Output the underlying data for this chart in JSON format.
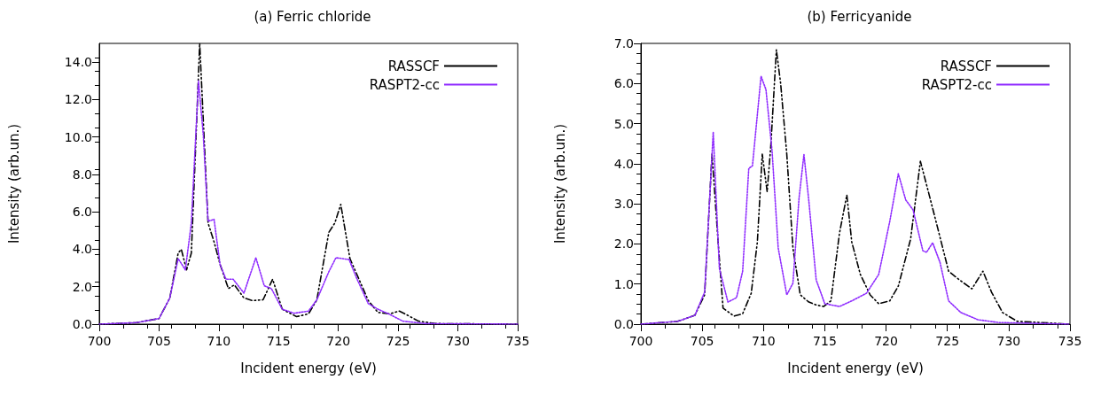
{
  "chart_data": [
    {
      "type": "line",
      "title": "(a) Ferric chloride",
      "xlabel": "Incident energy (eV)",
      "ylabel": "Intensity (arb.un.)",
      "xlim": [
        700,
        735
      ],
      "xticks": [
        700,
        705,
        710,
        715,
        720,
        725,
        730,
        735
      ],
      "ylim": [
        0,
        15
      ],
      "yticks": [
        {
          "value": 0,
          "label": "0.0"
        },
        {
          "value": 2,
          "label": "2.0"
        },
        {
          "value": 4,
          "label": "4.0"
        },
        {
          "value": 6,
          "label": "6.0"
        },
        {
          "value": 8,
          "label": "8.0"
        },
        {
          "value": 10,
          "label": "10.0"
        },
        {
          "value": 12,
          "label": "12.0"
        },
        {
          "value": 14,
          "label": "14.0"
        }
      ],
      "grid": false,
      "legend": "top right",
      "marker": "none",
      "series": [
        {
          "name": "RASSCF",
          "color": "#000000",
          "line_style": "dashed",
          "x": [
            700,
            703.1,
            705,
            705.9,
            706.6,
            706.86,
            707.3,
            707.7,
            708.1,
            708.4,
            708.7,
            709.1,
            709.6,
            710.1,
            710.8,
            711.3,
            712.1,
            712.8,
            713.7,
            714.5,
            715.3,
            716.5,
            717.5,
            718.2,
            719.2,
            719.7,
            720.2,
            720.97,
            722.5,
            723.3,
            724.3,
            725.1,
            725.8,
            726.7,
            728.1,
            735
          ],
          "values": [
            0,
            0.08,
            0.3,
            1.4,
            3.8,
            4.0,
            2.9,
            3.8,
            10.1,
            15.0,
            10.9,
            5.4,
            4.4,
            3.2,
            1.9,
            2.1,
            1.4,
            1.26,
            1.3,
            2.4,
            0.8,
            0.4,
            0.55,
            1.3,
            4.9,
            5.4,
            6.4,
            3.5,
            1.26,
            0.63,
            0.55,
            0.7,
            0.47,
            0.16,
            0.03,
            0
          ]
        },
        {
          "name": "RASPT2-cc",
          "color": "#8f2bff",
          "line_style": "dotted",
          "x": [
            700,
            703.1,
            705,
            705.9,
            706.6,
            707.2,
            707.7,
            708.3,
            708.7,
            709.1,
            709.6,
            710.1,
            710.6,
            711.2,
            712.1,
            713.1,
            713.8,
            714.4,
            715.3,
            716.3,
            717.5,
            718.2,
            719.2,
            719.8,
            720.9,
            721.5,
            722.5,
            723.3,
            724.2,
            725.4,
            727.3,
            735
          ],
          "values": [
            0,
            0.08,
            0.3,
            1.4,
            3.5,
            2.9,
            5.4,
            13.0,
            10.1,
            5.5,
            5.6,
            3.2,
            2.4,
            2.4,
            1.66,
            3.55,
            2.05,
            1.9,
            0.8,
            0.58,
            0.7,
            1.3,
            2.8,
            3.55,
            3.45,
            2.5,
            1.1,
            0.8,
            0.55,
            0.16,
            0.03,
            0
          ]
        }
      ]
    },
    {
      "type": "line",
      "title": "(b) Ferricyanide",
      "xlabel": "Incident energy (eV)",
      "ylabel": "Intensity (arb.un.)",
      "xlim": [
        700,
        735
      ],
      "xticks": [
        700,
        705,
        710,
        715,
        720,
        725,
        730,
        735
      ],
      "ylim": [
        0,
        7
      ],
      "yticks": [
        {
          "value": 0,
          "label": "0.0"
        },
        {
          "value": 1,
          "label": "1.0"
        },
        {
          "value": 2,
          "label": "2.0"
        },
        {
          "value": 3,
          "label": "3.0"
        },
        {
          "value": 4,
          "label": "4.0"
        },
        {
          "value": 5,
          "label": "5.0"
        },
        {
          "value": 6,
          "label": "6.0"
        },
        {
          "value": 7,
          "label": "7.0"
        }
      ],
      "grid": false,
      "legend": "top right",
      "marker": "none",
      "series": [
        {
          "name": "RASSCF",
          "color": "#000000",
          "line_style": "dashed",
          "x": [
            700,
            703,
            704.4,
            705.2,
            705.8,
            706.3,
            706.7,
            707.6,
            708.3,
            709,
            709.5,
            709.9,
            710.3,
            710.6,
            711.05,
            711.4,
            711.9,
            712.4,
            713,
            713.7,
            714.3,
            714.9,
            715.5,
            716.2,
            716.8,
            717.2,
            717.9,
            718.7,
            719.4,
            720.3,
            721,
            722,
            722.8,
            723.4,
            724.2,
            725.1,
            726,
            727,
            727.9,
            728.6,
            729.5,
            730.7,
            735
          ],
          "values": [
            0,
            0.07,
            0.22,
            0.73,
            4.24,
            2.05,
            0.4,
            0.2,
            0.26,
            0.77,
            2.05,
            4.24,
            3.3,
            4.46,
            6.84,
            6.0,
            4.24,
            1.9,
            0.73,
            0.55,
            0.48,
            0.44,
            0.58,
            2.27,
            3.22,
            2.05,
            1.24,
            0.73,
            0.51,
            0.58,
            0.95,
            2.12,
            4.06,
            3.36,
            2.41,
            1.32,
            1.1,
            0.88,
            1.32,
            0.8,
            0.29,
            0.07,
            0
          ]
        },
        {
          "name": "RASPT2-cc",
          "color": "#8f2bff",
          "line_style": "dotted",
          "x": [
            700,
            703,
            704.4,
            705.2,
            705.9,
            706.4,
            707.1,
            707.8,
            708.3,
            708.8,
            709.1,
            709.8,
            710.2,
            710.7,
            711.2,
            711.9,
            712.4,
            712.9,
            713.3,
            713.7,
            714.3,
            715,
            716.2,
            717.2,
            718.4,
            719.4,
            720.3,
            721,
            721.6,
            722.2,
            723,
            723.3,
            723.8,
            724.4,
            725.1,
            726.1,
            727.5,
            729.2,
            735
          ],
          "values": [
            0,
            0.07,
            0.22,
            0.8,
            4.79,
            1.39,
            0.55,
            0.66,
            1.32,
            3.88,
            3.95,
            6.18,
            5.85,
            4.32,
            1.9,
            0.73,
            1.02,
            3.14,
            4.23,
            3.07,
            1.1,
            0.51,
            0.44,
            0.58,
            0.77,
            1.24,
            2.56,
            3.75,
            3.1,
            2.85,
            1.83,
            1.79,
            2.03,
            1.54,
            0.58,
            0.29,
            0.11,
            0.04,
            0
          ]
        }
      ]
    }
  ]
}
